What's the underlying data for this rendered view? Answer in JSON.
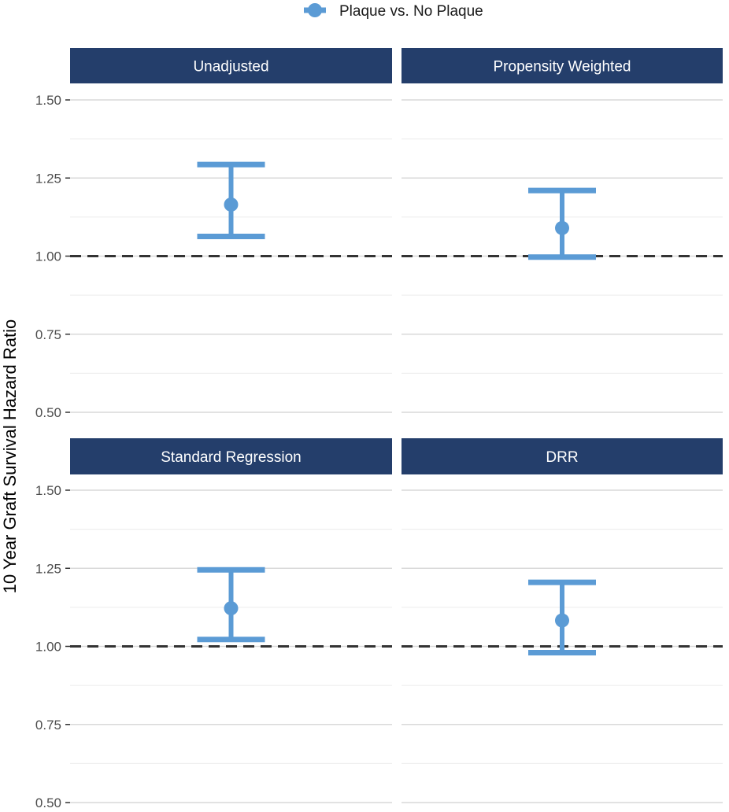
{
  "chart_data": {
    "type": "errorbar",
    "ylabel": "10 Year Graft Survival Hazard Ratio",
    "ylim": [
      0.5,
      1.55
    ],
    "yticks": [
      0.5,
      0.75,
      1.0,
      1.25,
      1.5
    ],
    "ytick_labels": [
      "0.50",
      "0.75",
      "1.00",
      "1.25",
      "1.50"
    ],
    "reference_line": 1.0,
    "legend": {
      "position": "top",
      "entries": [
        "Plaque vs. No Plaque"
      ]
    },
    "series_color": "#5b9bd5",
    "strip_color": "#243e6b",
    "panels": [
      {
        "title": "Unadjusted",
        "estimate": 1.165,
        "lower": 1.063,
        "upper": 1.293
      },
      {
        "title": "Propensity Weighted",
        "estimate": 1.09,
        "lower": 0.997,
        "upper": 1.21
      },
      {
        "title": "Standard Regression",
        "estimate": 1.122,
        "lower": 1.022,
        "upper": 1.245
      },
      {
        "title": "DRR",
        "estimate": 1.083,
        "lower": 0.98,
        "upper": 1.205
      }
    ]
  }
}
